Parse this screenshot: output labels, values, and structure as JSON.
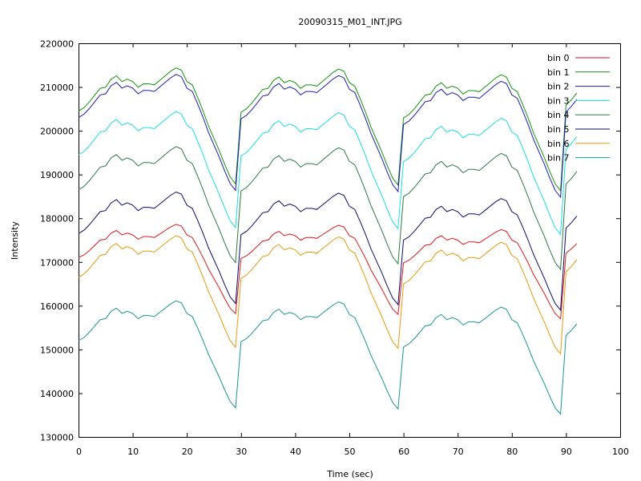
{
  "chart_data": {
    "type": "line",
    "title": "20090315_M01_INT.JPG",
    "xlabel": "Time (sec)",
    "ylabel": "Intensity",
    "xlim": [
      0,
      100
    ],
    "ylim": [
      130000,
      220000
    ],
    "x_ticks": [
      0,
      10,
      20,
      30,
      40,
      50,
      60,
      70,
      80,
      90,
      100
    ],
    "y_ticks": [
      130000,
      140000,
      150000,
      160000,
      170000,
      180000,
      190000,
      200000,
      210000,
      220000
    ],
    "grid": false,
    "legend_position": "top-right",
    "base_profile": [
      [
        0,
        0.0
      ],
      [
        1,
        0.03
      ],
      [
        2,
        0.08
      ],
      [
        3,
        0.14
      ],
      [
        4,
        0.2
      ],
      [
        5,
        0.21
      ],
      [
        6,
        0.28
      ],
      [
        7,
        0.31
      ],
      [
        8,
        0.26
      ],
      [
        9,
        0.28
      ],
      [
        10,
        0.26
      ],
      [
        11,
        0.21
      ],
      [
        12,
        0.24
      ],
      [
        13,
        0.24
      ],
      [
        14,
        0.23
      ],
      [
        15,
        0.27
      ],
      [
        16,
        0.31
      ],
      [
        17,
        0.35
      ],
      [
        18,
        0.38
      ],
      [
        19,
        0.36
      ],
      [
        20,
        0.26
      ],
      [
        21,
        0.23
      ],
      [
        22,
        0.12
      ],
      [
        23,
        0.0
      ],
      [
        24,
        -0.13
      ],
      [
        25,
        -0.24
      ],
      [
        26,
        -0.35
      ],
      [
        27,
        -0.47
      ],
      [
        28,
        -0.58
      ],
      [
        29,
        -0.64
      ]
    ],
    "cycle_shift": [
      0,
      -0.01,
      -0.06
    ],
    "extra_points": [
      [
        90,
        0.05
      ],
      [
        91,
        0.1
      ],
      [
        92,
        0.16
      ]
    ],
    "series": [
      {
        "name": "bin 0",
        "color": "#e01919",
        "base": 171000,
        "amplitude": 20000
      },
      {
        "name": "bin 1",
        "color": "#149414",
        "base": 204500,
        "amplitude": 26000
      },
      {
        "name": "bin 2",
        "color": "#1a1ab8",
        "base": 203000,
        "amplitude": 26000
      },
      {
        "name": "bin 3",
        "color": "#19e0e0",
        "base": 194500,
        "amplitude": 26000
      },
      {
        "name": "bin 4",
        "color": "#2c7a46",
        "base": 186500,
        "amplitude": 26000
      },
      {
        "name": "bin 5",
        "color": "#0a0a6e",
        "base": 176500,
        "amplitude": 25000
      },
      {
        "name": "bin 6",
        "color": "#e89a10",
        "base": 166500,
        "amplitude": 25000
      },
      {
        "name": "bin 7",
        "color": "#1a9696",
        "base": 152000,
        "amplitude": 24000
      }
    ]
  }
}
